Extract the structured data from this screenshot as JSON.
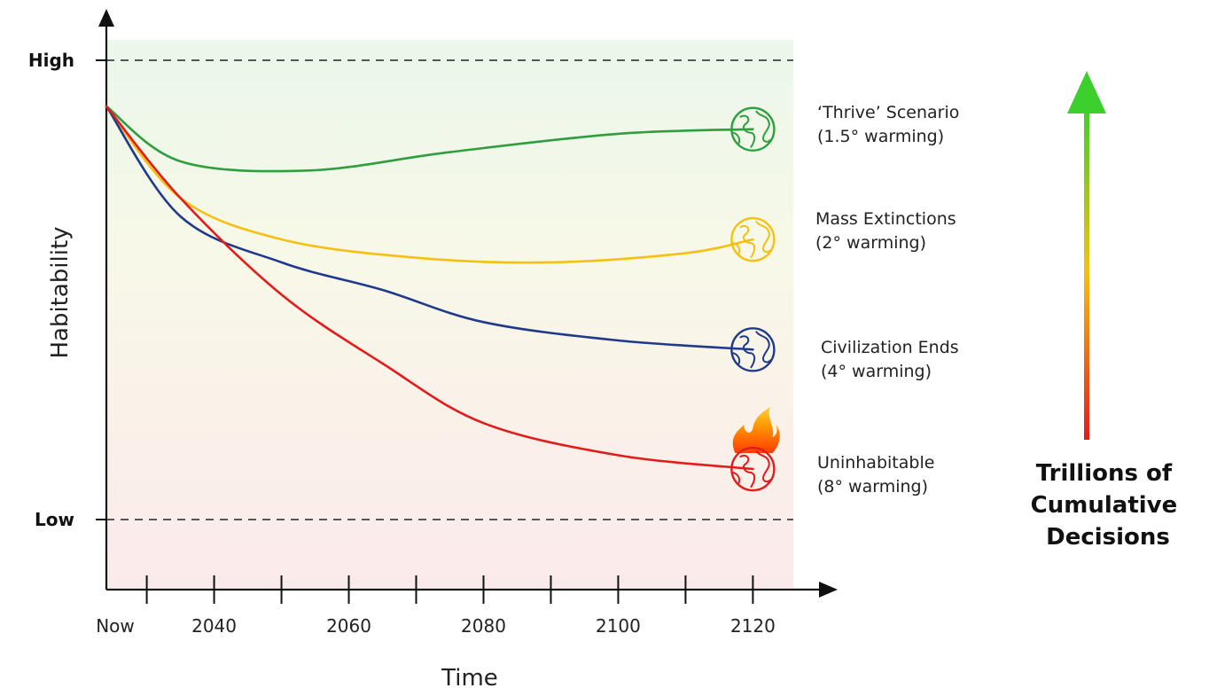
{
  "chart_data": {
    "type": "line",
    "xlabel": "Time",
    "ylabel": "Habitability",
    "x_ticks": [
      "Now",
      "2040",
      "2060",
      "2080",
      "2100",
      "2120"
    ],
    "xlim": [
      2024,
      2126
    ],
    "y_bounds": {
      "high": "High",
      "low": "Low"
    },
    "ylim": [
      -0.15,
      1.05
    ],
    "grid": false,
    "series": [
      {
        "label_lines": [
          "‘Thrive’ Scenario",
          "(1.5° warming)"
        ],
        "color": "#2e9e3e",
        "icon": "earth-icon",
        "points": [
          [
            2024,
            0.9
          ],
          [
            2035,
            0.78
          ],
          [
            2054,
            0.76
          ],
          [
            2075,
            0.8
          ],
          [
            2100,
            0.84
          ],
          [
            2120,
            0.85
          ]
        ]
      },
      {
        "label_lines": [
          "Mass Extinctions",
          "(2° warming)"
        ],
        "color": "#f5c012",
        "icon": "earth-icon",
        "points": [
          [
            2024,
            0.9
          ],
          [
            2035,
            0.7
          ],
          [
            2050,
            0.61
          ],
          [
            2070,
            0.57
          ],
          [
            2090,
            0.56
          ],
          [
            2110,
            0.58
          ],
          [
            2120,
            0.61
          ]
        ]
      },
      {
        "label_lines": [
          "Civilization Ends",
          "(4° warming)"
        ],
        "color": "#1f3a8a",
        "icon": "earth-icon",
        "points": [
          [
            2024,
            0.9
          ],
          [
            2035,
            0.66
          ],
          [
            2050,
            0.56
          ],
          [
            2065,
            0.5
          ],
          [
            2080,
            0.43
          ],
          [
            2100,
            0.39
          ],
          [
            2120,
            0.37
          ]
        ]
      },
      {
        "label_lines": [
          "Uninhabitable",
          "(8° warming)"
        ],
        "color": "#e21b1b",
        "icon": "burning-earth-icon",
        "points": [
          [
            2024,
            0.9
          ],
          [
            2035,
            0.7
          ],
          [
            2050,
            0.49
          ],
          [
            2065,
            0.34
          ],
          [
            2080,
            0.21
          ],
          [
            2100,
            0.14
          ],
          [
            2120,
            0.11
          ]
        ]
      }
    ],
    "annotation": "Trillions of Cumulative Decisions",
    "annotation_lines": [
      "Trillions of",
      "Cumulative",
      "Decisions"
    ],
    "annotation_arrow": {
      "from_color": "#e21b1b",
      "mid_color": "#f5c012",
      "to_color": "#3ccf2e",
      "direction": "up"
    }
  }
}
